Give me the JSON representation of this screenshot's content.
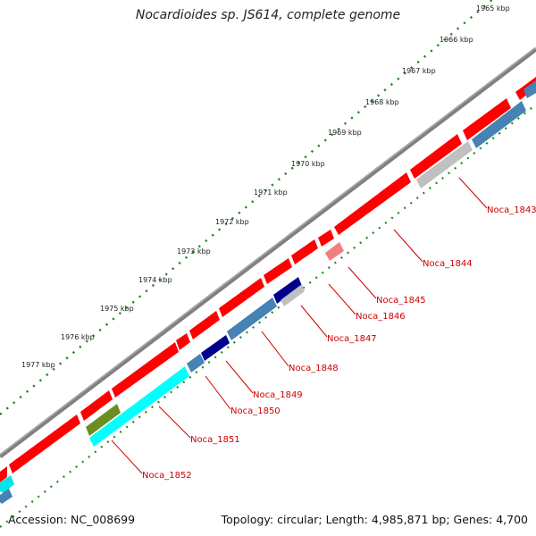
{
  "title": "Nocardioides sp. JS614, complete genome",
  "footer": {
    "accession": "Accession: NC_008699",
    "summary": "Topology: circular; Length: 4,985,871 bp; Genes: 4,700"
  },
  "colors": {
    "backbone": "#7f7f7f",
    "tick_green": "#1a8a1a",
    "label_red": "#cc0000",
    "gene_red": "#ff0000",
    "gene_blue": "#4682b4",
    "gene_gray": "#c0c0c0",
    "gene_pink": "#f08080",
    "gene_navy": "#00008b",
    "gene_cyan": "#00ffff",
    "gene_olive": "#6b8e23"
  },
  "kbp_labels": [
    "1965 kbp",
    "1966 kbp",
    "1967 kbp",
    "1968 kbp",
    "1969 kbp",
    "1970 kbp",
    "1971 kbp",
    "1972 kbp",
    "1973 kbp",
    "1974 kbp",
    "1975 kbp",
    "1976 kbp",
    "1977 kbp"
  ],
  "gene_labels": [
    "Noca_1843",
    "Noca_1844",
    "Noca_1845",
    "Noca_1846",
    "Noca_1847",
    "Noca_1848",
    "Noca_1849",
    "Noca_1850",
    "Noca_1851",
    "Noca_1852"
  ]
}
